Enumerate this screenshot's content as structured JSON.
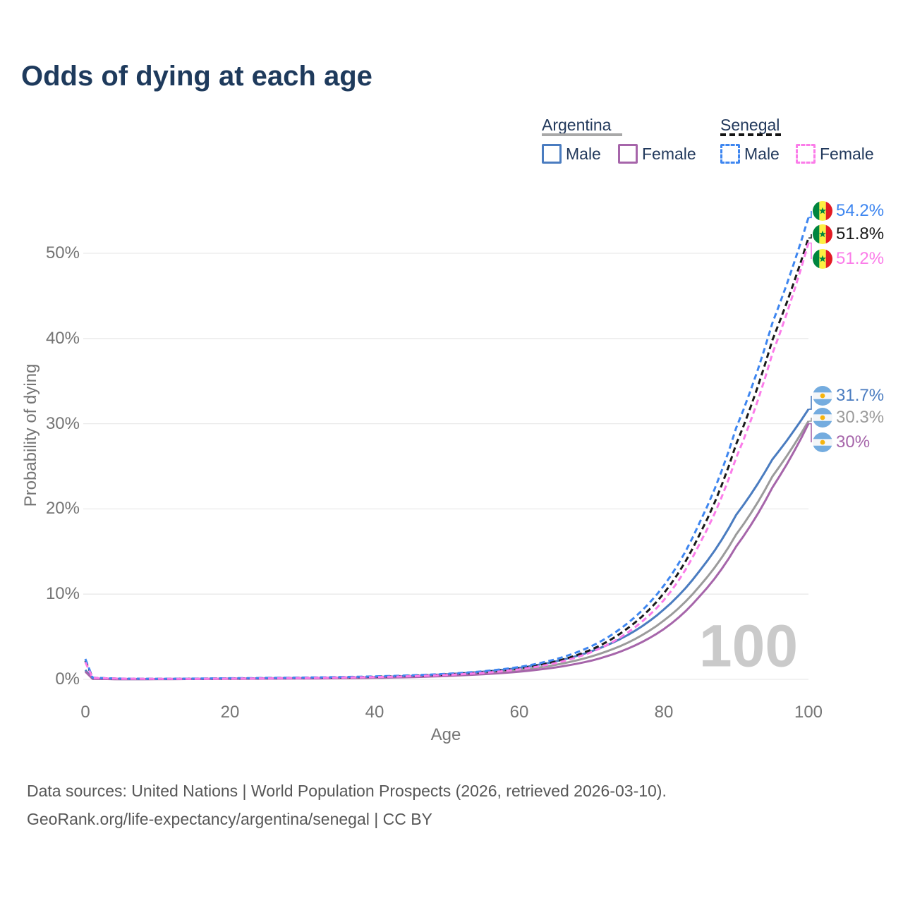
{
  "title": "Odds of dying at each age",
  "legend": {
    "groups": [
      {
        "id": "argentina",
        "label": "Argentina",
        "line_style": "solid",
        "underline_color": "#a8a8a8",
        "items": [
          {
            "series": "argentina_male",
            "label": "Male"
          },
          {
            "series": "argentina_female",
            "label": "Female"
          }
        ]
      },
      {
        "id": "senegal",
        "label": "Senegal",
        "line_style": "dashed",
        "underline_color": "#151515",
        "items": [
          {
            "series": "senegal_male",
            "label": "Male"
          },
          {
            "series": "senegal_female",
            "label": "Female"
          }
        ]
      }
    ]
  },
  "chart_data": {
    "type": "line",
    "title": "Odds of dying at each age",
    "xlabel": "Age",
    "ylabel": "Probability of dying",
    "x_ticks": [
      0,
      20,
      40,
      60,
      80,
      100
    ],
    "y_ticks": [
      {
        "value": 0,
        "label": "0%"
      },
      {
        "value": 10,
        "label": "10%"
      },
      {
        "value": 20,
        "label": "20%"
      },
      {
        "value": 30,
        "label": "30%"
      },
      {
        "value": 40,
        "label": "40%"
      },
      {
        "value": 50,
        "label": "50%"
      }
    ],
    "xlim": [
      0,
      100
    ],
    "ylim_pct": [
      0,
      56
    ],
    "grid": "horizontal",
    "watermark": "100",
    "ages": [
      0,
      1,
      5,
      10,
      15,
      20,
      25,
      30,
      35,
      40,
      45,
      50,
      55,
      60,
      65,
      70,
      75,
      80,
      85,
      90,
      95,
      100
    ],
    "series": [
      {
        "id": "argentina_total",
        "name": "Argentina (both sexes)",
        "color": "#9b9b9b",
        "dashed": false,
        "values": [
          1.0,
          0.07,
          0.03,
          0.03,
          0.05,
          0.08,
          0.1,
          0.13,
          0.17,
          0.23,
          0.33,
          0.5,
          0.75,
          1.1,
          1.7,
          2.7,
          4.3,
          6.9,
          11.0,
          17.0,
          23.8,
          30.3
        ],
        "end_label": "30.3%",
        "end_value_pct": 30.3,
        "flag": "argentina"
      },
      {
        "id": "argentina_male",
        "name": "Argentina male",
        "color": "#4a7cc0",
        "dashed": false,
        "values": [
          1.1,
          0.08,
          0.03,
          0.04,
          0.07,
          0.1,
          0.13,
          0.16,
          0.2,
          0.28,
          0.4,
          0.6,
          0.9,
          1.35,
          2.1,
          3.3,
          5.2,
          8.2,
          12.8,
          19.3,
          25.8,
          31.7
        ],
        "end_label": "31.7%",
        "end_value_pct": 31.7,
        "flag": "argentina"
      },
      {
        "id": "argentina_female",
        "name": "Argentina female",
        "color": "#a665aa",
        "dashed": false,
        "values": [
          0.9,
          0.07,
          0.02,
          0.03,
          0.04,
          0.06,
          0.08,
          0.1,
          0.13,
          0.18,
          0.26,
          0.4,
          0.6,
          0.9,
          1.4,
          2.2,
          3.6,
          5.9,
          9.8,
          15.6,
          22.5,
          30.0
        ],
        "end_label": "30%",
        "end_value_pct": 30.0,
        "flag": "argentina"
      },
      {
        "id": "senegal_total",
        "name": "Senegal (both sexes)",
        "color": "#1a1a1a",
        "dashed": true,
        "values": [
          2.2,
          0.18,
          0.08,
          0.06,
          0.08,
          0.11,
          0.14,
          0.18,
          0.23,
          0.31,
          0.42,
          0.58,
          0.85,
          1.3,
          2.1,
          3.5,
          6.0,
          10.1,
          17.1,
          27.6,
          39.8,
          51.8
        ],
        "end_label": "51.8%",
        "end_value_pct": 51.8,
        "flag": "senegal"
      },
      {
        "id": "senegal_male",
        "name": "Senegal male",
        "color": "#3e86f0",
        "dashed": true,
        "values": [
          2.4,
          0.2,
          0.09,
          0.07,
          0.09,
          0.13,
          0.17,
          0.21,
          0.27,
          0.35,
          0.47,
          0.65,
          0.95,
          1.45,
          2.35,
          3.9,
          6.6,
          11.0,
          18.5,
          29.5,
          41.8,
          54.2
        ],
        "end_label": "54.2%",
        "end_value_pct": 54.2,
        "flag": "senegal"
      },
      {
        "id": "senegal_female",
        "name": "Senegal female",
        "color": "#fb7ce9",
        "dashed": true,
        "values": [
          2.0,
          0.17,
          0.08,
          0.06,
          0.07,
          0.09,
          0.12,
          0.16,
          0.2,
          0.27,
          0.37,
          0.52,
          0.76,
          1.17,
          1.9,
          3.2,
          5.5,
          9.3,
          16.0,
          26.0,
          38.2,
          51.2
        ],
        "end_label": "51.2%",
        "end_value_pct": 51.2,
        "flag": "senegal"
      }
    ],
    "flag_colors": {
      "senegal": {
        "green": "#00853F",
        "yellow": "#FDEF42",
        "red": "#E31B23",
        "star": "#00853F"
      },
      "argentina": {
        "blue": "#74ACDF",
        "white": "#f4f6f8",
        "sun": "#F6B40E"
      }
    },
    "grid_color": "#e9e9e9",
    "axis_text_color": "#757575",
    "watermark_color": "#cacaca"
  },
  "footer": {
    "line1": "Data sources: United Nations | World Population Prospects (2026, retrieved 2026-03-10).",
    "line2": "GeoRank.org/life-expectancy/argentina/senegal | CC BY"
  }
}
